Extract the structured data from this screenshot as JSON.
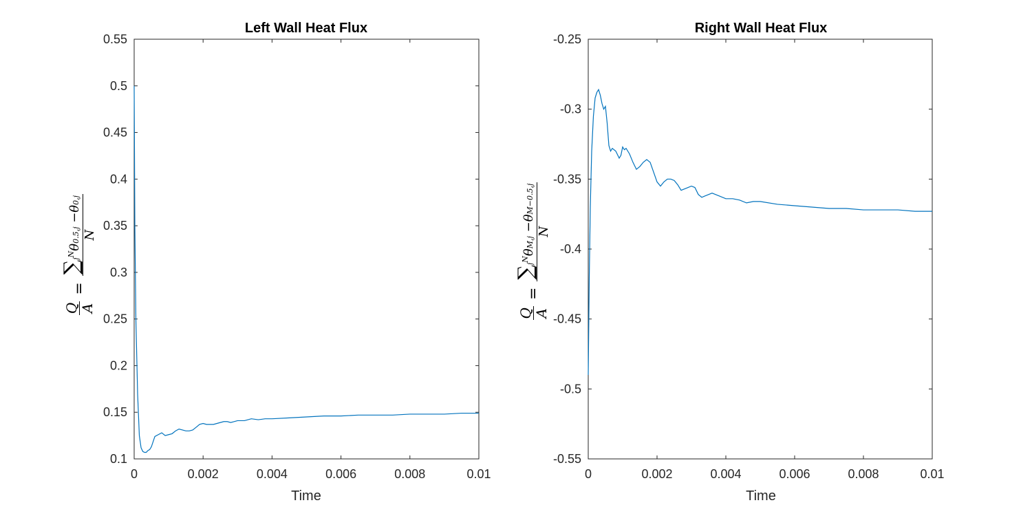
{
  "chart_data": [
    {
      "type": "line",
      "title": "Left Wall Heat Flux",
      "xlabel": "Time",
      "ylabel": "Q/A = Σ_j^N (θ_{0.5,j} − θ_{0,j}) / N",
      "xlim": [
        0,
        0.01
      ],
      "ylim": [
        0.1,
        0.55
      ],
      "xticks": [
        "0",
        "0.002",
        "0.004",
        "0.006",
        "0.008",
        "0.01"
      ],
      "yticks": [
        "0.1",
        "0.15",
        "0.2",
        "0.25",
        "0.3",
        "0.35",
        "0.4",
        "0.45",
        "0.5",
        "0.55"
      ],
      "grid": false,
      "series_color": "#0072BD",
      "series": [
        {
          "x": [
            0,
            2e-05,
            5e-05,
            0.0001,
            0.00015,
            0.0002,
            0.00025,
            0.0003,
            0.00035,
            0.0004,
            0.00045,
            0.0005,
            0.0006,
            0.0007,
            0.0008,
            0.0009,
            0.001,
            0.0011,
            0.0012,
            0.0013,
            0.0014,
            0.0015,
            0.0016,
            0.0017,
            0.0018,
            0.0019,
            0.002,
            0.0021,
            0.0022,
            0.0023,
            0.0024,
            0.0025,
            0.0026,
            0.0027,
            0.0028,
            0.0029,
            0.003,
            0.0032,
            0.0034,
            0.0036,
            0.0038,
            0.004,
            0.0045,
            0.005,
            0.0055,
            0.006,
            0.0065,
            0.007,
            0.0075,
            0.008,
            0.0085,
            0.009,
            0.0095,
            0.01
          ],
          "y": [
            0.5,
            0.35,
            0.25,
            0.17,
            0.125,
            0.112,
            0.108,
            0.107,
            0.107,
            0.109,
            0.11,
            0.113,
            0.124,
            0.126,
            0.128,
            0.125,
            0.126,
            0.127,
            0.13,
            0.132,
            0.131,
            0.13,
            0.13,
            0.131,
            0.134,
            0.137,
            0.138,
            0.137,
            0.137,
            0.137,
            0.138,
            0.139,
            0.14,
            0.14,
            0.139,
            0.14,
            0.141,
            0.141,
            0.143,
            0.142,
            0.143,
            0.143,
            0.144,
            0.145,
            0.146,
            0.146,
            0.147,
            0.147,
            0.147,
            0.148,
            0.148,
            0.148,
            0.149,
            0.149
          ]
        }
      ]
    },
    {
      "type": "line",
      "title": "Right Wall Heat Flux",
      "xlabel": "Time",
      "ylabel": "Q/A = Σ_j^N (θ_{M,j} − θ_{M−0.5,j}) / N",
      "xlim": [
        0,
        0.01
      ],
      "ylim": [
        -0.55,
        -0.25
      ],
      "xticks": [
        "0",
        "0.002",
        "0.004",
        "0.006",
        "0.008",
        "0.01"
      ],
      "yticks": [
        "-0.55",
        "-0.5",
        "-0.45",
        "-0.4",
        "-0.35",
        "-0.3",
        "-0.25"
      ],
      "grid": false,
      "series_color": "#0072BD",
      "series": [
        {
          "x": [
            0,
            3e-05,
            6e-05,
            0.0001,
            0.00015,
            0.0002,
            0.00025,
            0.0003,
            0.00035,
            0.0004,
            0.00045,
            0.0005,
            0.00055,
            0.0006,
            0.00065,
            0.0007,
            0.0008,
            0.0009,
            0.00095,
            0.001,
            0.00105,
            0.0011,
            0.0012,
            0.0013,
            0.0014,
            0.0015,
            0.0016,
            0.0017,
            0.0018,
            0.0019,
            0.002,
            0.0021,
            0.0022,
            0.0023,
            0.0024,
            0.0025,
            0.0026,
            0.0027,
            0.0028,
            0.0029,
            0.003,
            0.0031,
            0.0032,
            0.0033,
            0.0034,
            0.0035,
            0.0036,
            0.0037,
            0.0038,
            0.004,
            0.0042,
            0.0044,
            0.0046,
            0.0048,
            0.005,
            0.0055,
            0.006,
            0.0065,
            0.007,
            0.0075,
            0.008,
            0.0085,
            0.009,
            0.0095,
            0.01
          ],
          "y": [
            -0.49,
            -0.42,
            -0.37,
            -0.33,
            -0.305,
            -0.292,
            -0.288,
            -0.286,
            -0.29,
            -0.296,
            -0.3,
            -0.298,
            -0.31,
            -0.326,
            -0.33,
            -0.328,
            -0.33,
            -0.335,
            -0.333,
            -0.327,
            -0.329,
            -0.328,
            -0.332,
            -0.338,
            -0.343,
            -0.341,
            -0.338,
            -0.336,
            -0.338,
            -0.345,
            -0.352,
            -0.355,
            -0.352,
            -0.35,
            -0.35,
            -0.351,
            -0.354,
            -0.358,
            -0.357,
            -0.356,
            -0.355,
            -0.356,
            -0.361,
            -0.363,
            -0.362,
            -0.361,
            -0.36,
            -0.361,
            -0.362,
            -0.364,
            -0.364,
            -0.365,
            -0.367,
            -0.366,
            -0.366,
            -0.368,
            -0.369,
            -0.37,
            -0.371,
            -0.371,
            -0.372,
            -0.372,
            -0.372,
            -0.373,
            -0.373
          ]
        }
      ]
    }
  ]
}
